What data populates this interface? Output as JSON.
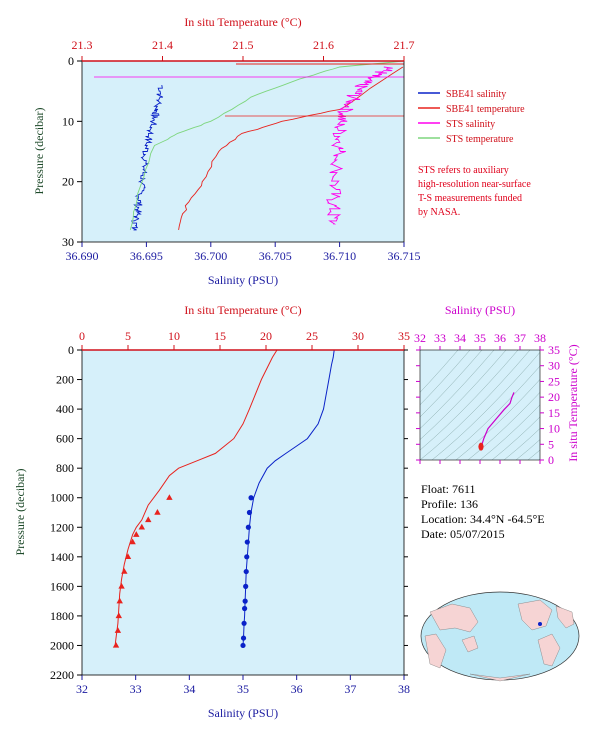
{
  "colors": {
    "plot_bg": "#d6f0fa",
    "sbe_salinity": "#0a22c8",
    "sbe_temperature": "#e8231e",
    "sts_salinity": "#ff00ee",
    "sts_temperature": "#7ed67e",
    "salinity_axis": "#1a1aa0",
    "temp_axis": "#d0101a",
    "pressure_axis": "#1e4a2a",
    "ts_axis": "#cc00cc"
  },
  "top_chart": {
    "top_axis_title": "In situ Temperature (°C)",
    "bottom_axis_title": "Salinity (PSU)",
    "left_axis_title": "Pressure (decibar)",
    "temp_ticks": [
      "21.3",
      "21.4",
      "21.5",
      "21.6",
      "21.7"
    ],
    "sal_ticks": [
      "36.690",
      "36.695",
      "36.700",
      "36.705",
      "36.710",
      "36.715"
    ],
    "pres_ticks": [
      "0",
      "10",
      "20",
      "30"
    ],
    "legend": [
      {
        "label": "SBE41 salinity",
        "color": "#0a22c8"
      },
      {
        "label": "SBE41 temperature",
        "color": "#e8231e"
      },
      {
        "label": "STS salinity",
        "color": "#ff00ee"
      },
      {
        "label": "STS temperature",
        "color": "#7ed67e"
      }
    ],
    "note_lines": [
      "STS refers to auxiliary",
      "high-resolution near-surface",
      "T-S measurements funded",
      "by NASA."
    ]
  },
  "main_chart": {
    "top_axis_title": "In situ Temperature (°C)",
    "bottom_axis_title": "Salinity (PSU)",
    "left_axis_title": "Pressure (decibar)",
    "temp_ticks": [
      "0",
      "5",
      "10",
      "15",
      "20",
      "25",
      "30",
      "35"
    ],
    "sal_ticks": [
      "32",
      "33",
      "34",
      "35",
      "36",
      "37",
      "38"
    ],
    "pres_ticks": [
      "0",
      "200",
      "400",
      "600",
      "800",
      "1000",
      "1200",
      "1400",
      "1600",
      "1800",
      "2000",
      "2200"
    ]
  },
  "ts_chart": {
    "top_axis_title": "Salinity (PSU)",
    "right_axis_title": "In situ Temperature (°C)",
    "sal_ticks": [
      "32",
      "33",
      "34",
      "35",
      "36",
      "37",
      "38"
    ],
    "temp_ticks": [
      "0",
      "5",
      "10",
      "15",
      "20",
      "25",
      "30",
      "35"
    ]
  },
  "info": {
    "float": "Float:  7611",
    "profile": "Profile:  136",
    "location": "Location:  34.4°N  -64.5°E",
    "date": "Date:  05/07/2015"
  },
  "chart_data": [
    {
      "type": "line",
      "title": "",
      "x_bottom": {
        "label": "Salinity (PSU)",
        "range": [
          36.69,
          36.715
        ]
      },
      "x_top": {
        "label": "In situ Temperature (°C)",
        "range": [
          21.3,
          21.7
        ]
      },
      "y": {
        "label": "Pressure (decibar)",
        "range": [
          0,
          30
        ],
        "reversed": true
      },
      "series": [
        {
          "name": "SBE41 salinity",
          "axis": "salinity",
          "x": [
            36.6962,
            36.6958,
            36.6955,
            36.695,
            36.6948,
            36.6945,
            36.6943,
            36.694
          ],
          "y": [
            4,
            8,
            10,
            14,
            18,
            22,
            25,
            28
          ]
        },
        {
          "name": "SBE41 temperature",
          "axis": "temperature",
          "x": [
            21.7,
            21.62,
            21.55,
            21.5,
            21.47,
            21.45,
            21.43,
            21.42
          ],
          "y": [
            1,
            8,
            10,
            12,
            15,
            20,
            24,
            28
          ]
        },
        {
          "name": "STS salinity",
          "axis": "salinity",
          "x": [
            36.714,
            36.712,
            36.711,
            36.71,
            36.71,
            36.7095,
            36.7095
          ],
          "y": [
            1,
            3,
            6,
            10,
            15,
            22,
            27
          ]
        },
        {
          "name": "STS temperature",
          "axis": "temperature",
          "x": [
            21.7,
            21.62,
            21.57,
            21.51,
            21.46,
            21.42,
            21.39,
            21.37,
            21.36
          ],
          "y": [
            0,
            1,
            3,
            6,
            10,
            12,
            14,
            22,
            28
          ]
        }
      ],
      "grid": false,
      "legend": "right"
    },
    {
      "type": "line",
      "title": "",
      "x_bottom": {
        "label": "Salinity (PSU)",
        "range": [
          32,
          38
        ]
      },
      "x_top": {
        "label": "In situ Temperature (°C)",
        "range": [
          0,
          35
        ]
      },
      "y": {
        "label": "Pressure (decibar)",
        "range": [
          0,
          2200
        ],
        "reversed": true
      },
      "series": [
        {
          "name": "",
          "axis": "salinity",
          "x": [
            36.7,
            36.68,
            36.65,
            36.6,
            36.5,
            36.4,
            36.2,
            36.0,
            35.8,
            35.6,
            35.45,
            35.3,
            35.2,
            35.15,
            35.12,
            35.1,
            35.08,
            35.06,
            35.05,
            35.04,
            35.03,
            35.02,
            35.01,
            35.0
          ],
          "y": [
            0,
            50,
            100,
            200,
            400,
            500,
            600,
            650,
            700,
            750,
            800,
            900,
            1000,
            1100,
            1200,
            1300,
            1400,
            1500,
            1600,
            1700,
            1800,
            1850,
            1950,
            2000
          ]
        },
        {
          "name": "",
          "axis": "temperature",
          "x": [
            21.2,
            20.7,
            19.5,
            18.2,
            17.5,
            16.5,
            14.5,
            12.5,
            10.5,
            9.5,
            8.4,
            7.2,
            6.5,
            5.9,
            5.5,
            5.0,
            4.6,
            4.3,
            4.1,
            4.0,
            3.9,
            3.7,
            3.6
          ],
          "y": [
            0,
            50,
            200,
            400,
            500,
            600,
            700,
            750,
            800,
            850,
            950,
            1050,
            1150,
            1200,
            1250,
            1350,
            1450,
            1550,
            1650,
            1750,
            1850,
            1950,
            2000
          ]
        }
      ],
      "markers": {
        "salinity": {
          "x": [
            35.15,
            35.12,
            35.1,
            35.08,
            35.07,
            35.06,
            35.05,
            35.04,
            35.03,
            35.02,
            35.01,
            35.0
          ],
          "y": [
            1000,
            1100,
            1200,
            1300,
            1400,
            1500,
            1600,
            1700,
            1750,
            1850,
            1950,
            2000
          ]
        },
        "temperature": {
          "x": [
            9.5,
            8.2,
            7.2,
            6.5,
            5.9,
            5.5,
            5.0,
            4.6,
            4.3,
            4.1,
            4.0,
            3.9,
            3.7
          ],
          "y": [
            1000,
            1100,
            1150,
            1200,
            1250,
            1300,
            1400,
            1500,
            1600,
            1700,
            1800,
            1900,
            2000
          ]
        }
      },
      "grid": false
    },
    {
      "type": "scatter",
      "title": "",
      "x": {
        "label": "Salinity (PSU)",
        "range": [
          32,
          38
        ]
      },
      "y": {
        "label": "In situ Temperature (°C)",
        "range": [
          0,
          35
        ]
      },
      "series": [
        {
          "name": "",
          "x": [
            35.05,
            35.1,
            35.2,
            35.4,
            35.8,
            36.2,
            36.5,
            36.6,
            36.7
          ],
          "y": [
            3.6,
            5,
            7,
            10,
            13,
            16,
            18,
            20,
            21.5
          ]
        }
      ],
      "grid": false
    }
  ]
}
